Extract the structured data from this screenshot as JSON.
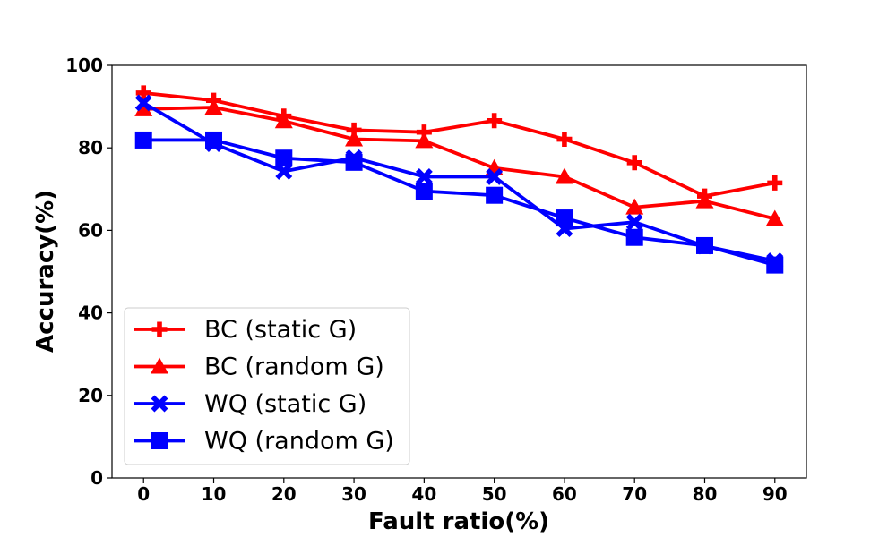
{
  "chart_data": {
    "type": "line",
    "title": "",
    "xlabel": "Fault ratio(%)",
    "ylabel": "Accuracy(%)",
    "x": [
      0,
      10,
      20,
      30,
      40,
      50,
      60,
      70,
      80,
      90
    ],
    "xticks": [
      "0",
      "10",
      "20",
      "30",
      "40",
      "50",
      "60",
      "70",
      "80",
      "90"
    ],
    "yticks": [
      "0",
      "20",
      "40",
      "60",
      "80",
      "100"
    ],
    "xlim": [
      -4.5,
      94.5
    ],
    "ylim": [
      0,
      100
    ],
    "grid": false,
    "legend_position": "lower-left",
    "series": [
      {
        "name": "BC (static G)",
        "color": "#ff0000",
        "marker": "plus",
        "values": [
          93.3,
          91.5,
          87.7,
          84.3,
          83.8,
          86.6,
          82.1,
          76.4,
          68.3,
          71.5
        ]
      },
      {
        "name": "BC (random G)",
        "color": "#ff0000",
        "marker": "triangle",
        "values": [
          89.4,
          89.8,
          86.5,
          82.1,
          81.7,
          75.1,
          73.0,
          65.6,
          67.1,
          62.8
        ]
      },
      {
        "name": "WQ (static G)",
        "color": "#0000ff",
        "marker": "x",
        "values": [
          90.9,
          81.0,
          74.3,
          77.6,
          73.0,
          73.0,
          60.4,
          62.0,
          56.2,
          52.6
        ]
      },
      {
        "name": "WQ (random G)",
        "color": "#0000ff",
        "marker": "square",
        "values": [
          81.9,
          81.9,
          77.5,
          76.5,
          69.5,
          68.5,
          63.0,
          58.3,
          56.3,
          51.6
        ]
      }
    ]
  }
}
